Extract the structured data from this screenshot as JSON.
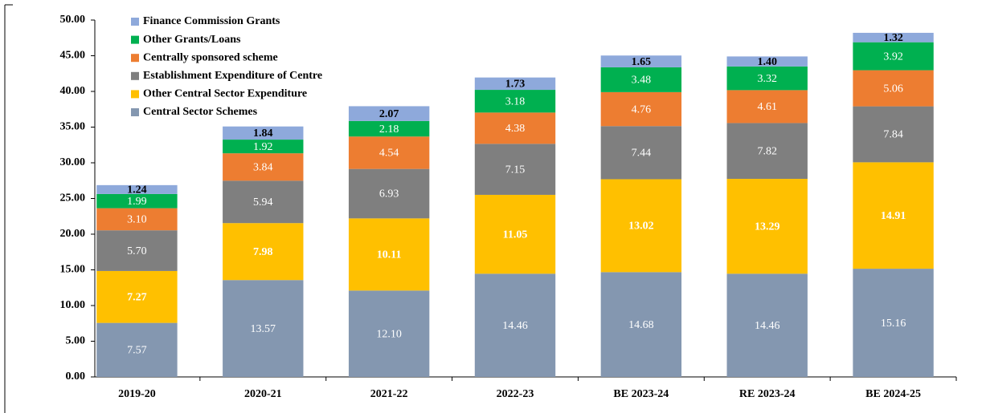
{
  "chart_data": {
    "type": "stacked_bar",
    "categories": [
      "2019-20",
      "2020-21",
      "2021-22",
      "2022-23",
      "BE 2023-24",
      "RE 2023-24",
      "BE 2024-25"
    ],
    "series": [
      {
        "name": "Central Sector Schemes",
        "color": "#8497b0",
        "values": [
          7.57,
          13.57,
          12.1,
          14.46,
          14.68,
          14.46,
          15.16
        ],
        "value_labels": [
          "7.57",
          "13.57",
          "12.10",
          "14.46",
          "14.68",
          "14.46",
          "15.16"
        ]
      },
      {
        "name": "Other Central Sector Expenditure",
        "color": "#ffc000",
        "values": [
          7.27,
          7.98,
          10.11,
          11.05,
          13.02,
          13.29,
          14.91
        ],
        "value_labels": [
          "7.27",
          "7.98",
          "10.11",
          "11.05",
          "13.02",
          "13.29",
          "14.91"
        ]
      },
      {
        "name": "Establishment Expenditure of Centre",
        "color": "#7f7f7f",
        "values": [
          5.7,
          5.94,
          6.93,
          7.15,
          7.44,
          7.82,
          7.84
        ],
        "value_labels": [
          "5.70",
          "5.94",
          "6.93",
          "7.15",
          "7.44",
          "7.82",
          "7.84"
        ]
      },
      {
        "name": "Centrally sponsored scheme",
        "color": "#ed7d31",
        "values": [
          3.1,
          3.84,
          4.54,
          4.38,
          4.76,
          4.61,
          5.06
        ],
        "value_labels": [
          "3.10",
          "3.84",
          "4.54",
          "4.38",
          "4.76",
          "4.61",
          "5.06"
        ]
      },
      {
        "name": "Other Grants/Loans",
        "color": "#00b050",
        "values": [
          1.99,
          1.92,
          2.18,
          3.18,
          3.48,
          3.32,
          3.92
        ],
        "value_labels": [
          "1.99",
          "1.92",
          "2.18",
          "3.18",
          "3.48",
          "3.32",
          "3.92"
        ]
      },
      {
        "name": "Finance Commission Grants",
        "color": "#8ea9db",
        "values": [
          1.24,
          1.84,
          2.07,
          1.73,
          1.65,
          1.4,
          1.32
        ],
        "value_labels": [
          "1.24",
          "1.84",
          "2.07",
          "1.73",
          "1.65",
          "1.40",
          "1.32"
        ]
      }
    ],
    "ylim": [
      0,
      50
    ],
    "yticks": [
      {
        "value": 0,
        "label": "0.00"
      },
      {
        "value": 5,
        "label": "5.00"
      },
      {
        "value": 10,
        "label": "10.00"
      },
      {
        "value": 15,
        "label": "15.00"
      },
      {
        "value": 20,
        "label": "20.00"
      },
      {
        "value": 25,
        "label": "25.00"
      },
      {
        "value": 30,
        "label": "30.00"
      },
      {
        "value": 35,
        "label": "35.00"
      },
      {
        "value": 40,
        "label": "40.00"
      },
      {
        "value": 45,
        "label": "45.00"
      },
      {
        "value": 50,
        "label": "50.00"
      }
    ],
    "legend": "upper left"
  }
}
